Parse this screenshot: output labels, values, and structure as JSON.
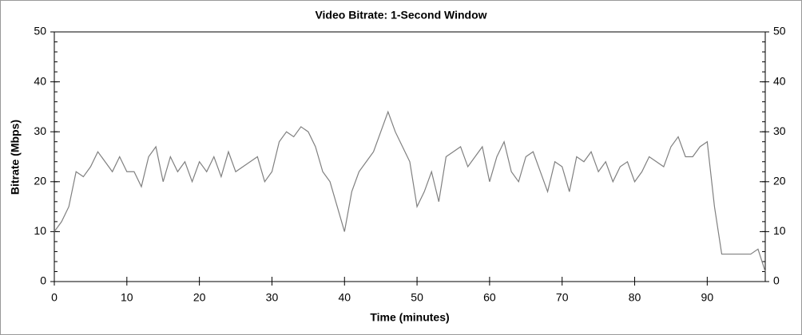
{
  "chart_data": {
    "type": "line",
    "title": "Video Bitrate: 1-Second Window",
    "xlabel": "Time (minutes)",
    "ylabel": "Bitrate (Mbps)",
    "x": [
      0,
      1,
      2,
      3,
      4,
      5,
      6,
      7,
      8,
      9,
      10,
      11,
      12,
      13,
      14,
      15,
      16,
      17,
      18,
      19,
      20,
      21,
      22,
      23,
      24,
      25,
      26,
      27,
      28,
      29,
      30,
      31,
      32,
      33,
      34,
      35,
      36,
      37,
      38,
      39,
      40,
      41,
      42,
      43,
      44,
      45,
      46,
      47,
      48,
      49,
      50,
      51,
      52,
      53,
      54,
      55,
      56,
      57,
      58,
      59,
      60,
      61,
      62,
      63,
      64,
      65,
      66,
      67,
      68,
      69,
      70,
      71,
      72,
      73,
      74,
      75,
      76,
      77,
      78,
      79,
      80,
      81,
      82,
      83,
      84,
      85,
      86,
      87,
      88,
      89,
      90,
      91,
      92,
      93,
      94,
      95,
      96,
      97,
      98
    ],
    "series": [
      {
        "name": "Bitrate",
        "color": "#808080",
        "values": [
          10,
          12,
          15,
          22,
          21,
          23,
          26,
          24,
          22,
          25,
          22,
          22,
          19,
          25,
          27,
          20,
          25,
          22,
          24,
          20,
          24,
          22,
          25,
          21,
          26,
          22,
          23,
          24,
          25,
          20,
          22,
          28,
          30,
          29,
          31,
          30,
          27,
          22,
          20,
          15,
          10,
          18,
          22,
          24,
          26,
          30,
          34,
          30,
          27,
          24,
          15,
          18,
          22,
          16,
          25,
          26,
          27,
          23,
          25,
          27,
          20,
          25,
          28,
          22,
          20,
          25,
          26,
          22,
          18,
          24,
          23,
          18,
          25,
          24,
          26,
          22,
          24,
          20,
          23,
          24,
          20,
          22,
          25,
          24,
          23,
          27,
          29,
          25,
          25,
          27,
          28,
          15,
          5.5,
          5.5,
          5.5,
          5.5,
          5.5,
          6.5,
          2
        ]
      }
    ],
    "xlim": [
      0,
      98
    ],
    "ylim": [
      0,
      50
    ],
    "xticks": [
      0,
      10,
      20,
      30,
      40,
      50,
      60,
      70,
      80,
      90
    ],
    "yticks": [
      0,
      10,
      20,
      30,
      40,
      50
    ],
    "grid": false
  }
}
